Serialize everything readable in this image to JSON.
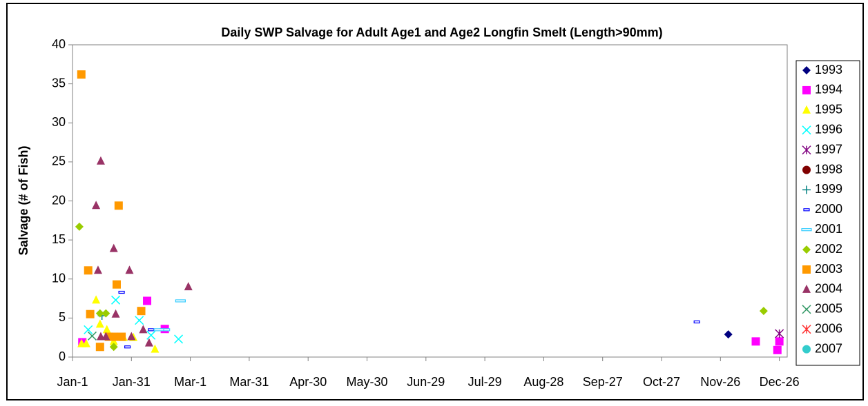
{
  "chart_data": {
    "type": "scatter",
    "title": "Daily SWP Salvage for Adult Age1 and Age2 Longfin Smelt (Length>90mm)",
    "y_label": "Salvage (# of Fish)",
    "xlim": [
      0,
      364
    ],
    "ylim": [
      0,
      40
    ],
    "xticks": [
      {
        "value": 0,
        "label": "Jan-1"
      },
      {
        "value": 30,
        "label": "Jan-31"
      },
      {
        "value": 60,
        "label": "Mar-1"
      },
      {
        "value": 90,
        "label": "Mar-31"
      },
      {
        "value": 120,
        "label": "Apr-30"
      },
      {
        "value": 150,
        "label": "May-30"
      },
      {
        "value": 180,
        "label": "Jun-29"
      },
      {
        "value": 210,
        "label": "Jul-29"
      },
      {
        "value": 240,
        "label": "Aug-28"
      },
      {
        "value": 270,
        "label": "Sep-27"
      },
      {
        "value": 300,
        "label": "Oct-27"
      },
      {
        "value": 330,
        "label": "Nov-26"
      },
      {
        "value": 360,
        "label": "Dec-26"
      }
    ],
    "yticks": [
      0,
      5,
      10,
      15,
      20,
      25,
      30,
      35,
      40
    ],
    "grid": false,
    "legend": "right",
    "series": [
      {
        "name": "1993",
        "color": "#000080",
        "marker": "diamond",
        "x": [
          334
        ],
        "y": [
          2.9
        ]
      },
      {
        "name": "1994",
        "color": "#ff00ff",
        "marker": "square",
        "x": [
          5,
          38,
          47,
          348,
          359,
          360
        ],
        "y": [
          1.9,
          7.2,
          3.6,
          2,
          0.9,
          2
        ]
      },
      {
        "name": "1995",
        "color": "#ffff00",
        "marker": "triangle",
        "x": [
          4.6,
          7,
          12,
          14,
          17.5,
          21,
          26,
          31,
          42
        ],
        "y": [
          1.7,
          1.7,
          7.3,
          4.2,
          3.5,
          2,
          2.5,
          2.5,
          1
        ]
      },
      {
        "name": "1996",
        "color": "#00ffff",
        "marker": "x",
        "x": [
          8,
          22,
          34,
          54,
          40
        ],
        "y": [
          3.5,
          7.3,
          4.7,
          2.3,
          2.8
        ]
      },
      {
        "name": "1997",
        "color": "#800080",
        "marker": "star",
        "x": [
          360
        ],
        "y": [
          3
        ]
      },
      {
        "name": "1998",
        "color": "#800000",
        "marker": "circle",
        "x": [],
        "y": []
      },
      {
        "name": "1999",
        "color": "#008080",
        "marker": "plus",
        "x": [
          15
        ],
        "y": [
          5.3
        ]
      },
      {
        "name": "2000",
        "color": "#0000ff",
        "marker": "dash",
        "x": [
          25,
          28,
          40,
          318
        ],
        "y": [
          8.3,
          1.3,
          3.5,
          4.5
        ]
      },
      {
        "name": "2001",
        "color": "#33ccff",
        "marker": "dash2",
        "x": [
          55,
          47,
          44
        ],
        "y": [
          7.2,
          3.5,
          3.5
        ]
      },
      {
        "name": "2002",
        "color": "#99cc00",
        "marker": "diamond",
        "x": [
          3.5,
          14,
          17,
          21,
          352
        ],
        "y": [
          16.7,
          5.6,
          5.6,
          1.3,
          5.9
        ]
      },
      {
        "name": "2003",
        "color": "#ff9900",
        "marker": "square",
        "x": [
          4.5,
          8,
          9,
          14,
          23.5,
          22.5,
          21,
          25,
          35,
          18.5
        ],
        "y": [
          36.2,
          11.1,
          5.5,
          1.3,
          19.4,
          9.3,
          2.6,
          2.6,
          5.9,
          2.6
        ]
      },
      {
        "name": "2004",
        "color": "#993366",
        "marker": "triangle",
        "x": [
          14.4,
          12,
          13,
          21,
          29,
          59,
          22,
          14.4,
          17,
          30,
          36,
          39
        ],
        "y": [
          25.1,
          19.4,
          11.1,
          13.9,
          11.1,
          9,
          5.5,
          2.6,
          2.6,
          2.6,
          3.5,
          1.8
        ]
      },
      {
        "name": "2005",
        "color": "#339966",
        "marker": "x",
        "x": [
          10
        ],
        "y": [
          2.7
        ]
      },
      {
        "name": "2006",
        "color": "#ff3333",
        "marker": "star",
        "x": [],
        "y": []
      },
      {
        "name": "2007",
        "color": "#33cccc",
        "marker": "circle",
        "x": [],
        "y": []
      }
    ]
  }
}
